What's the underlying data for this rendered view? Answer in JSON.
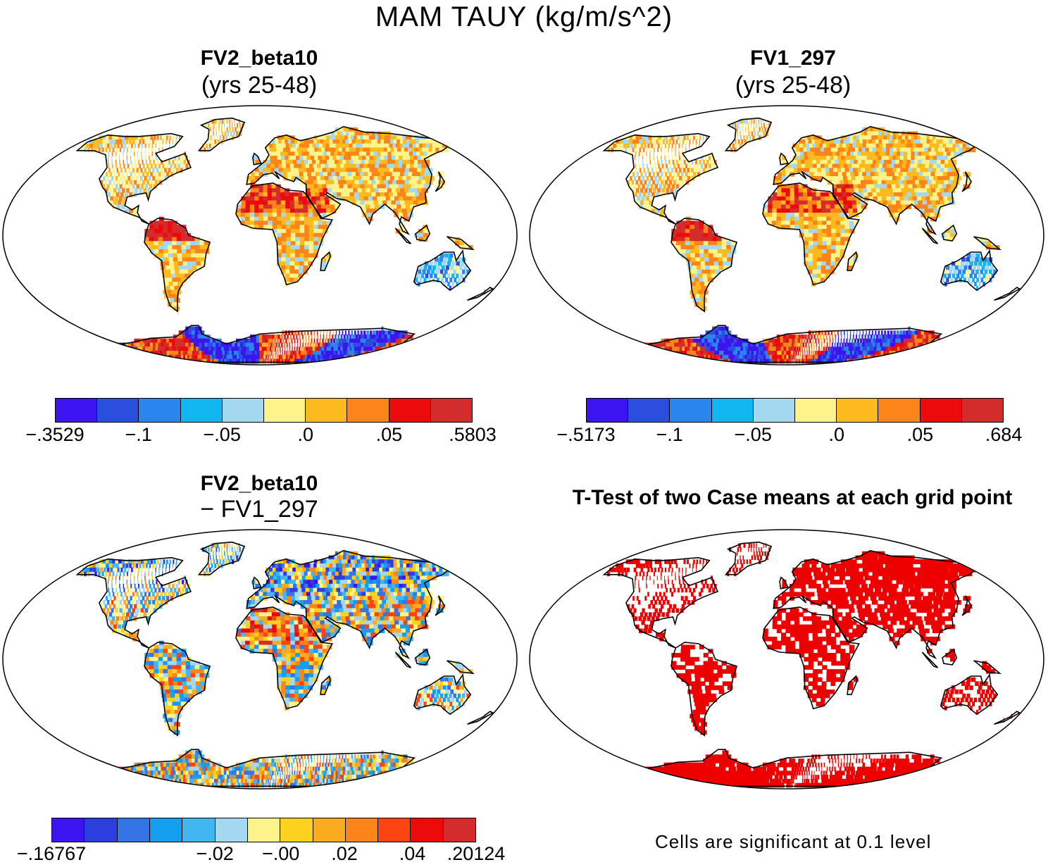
{
  "title": "MAM TAUY (kg/m/s^2)",
  "panels": [
    {
      "id": "p1",
      "title": "FV2_beta10",
      "subtitle": "(yrs 25-48)"
    },
    {
      "id": "p2",
      "title": "FV1_297",
      "subtitle": "(yrs 25-48)"
    },
    {
      "id": "p3",
      "title": "FV2_beta10",
      "subtitle": "− FV1_297"
    },
    {
      "id": "p4",
      "title": "T-Test of two Case means at each grid point",
      "subtitle": ""
    }
  ],
  "colorbars": [
    {
      "id": "cb1",
      "colors": [
        "#3c14f0",
        "#2c4ede",
        "#2a86ee",
        "#12b6f0",
        "#a4d8f0",
        "#fcf48a",
        "#fcba1e",
        "#fc8418",
        "#ec0a0a",
        "#d42c2c"
      ],
      "ticks": [
        "−.3529",
        "−.1",
        "−.05",
        ".0",
        ".05",
        ".5803"
      ]
    },
    {
      "id": "cb2",
      "colors": [
        "#3c14f0",
        "#2c4ede",
        "#2a86ee",
        "#12b6f0",
        "#a4d8f0",
        "#fcf48a",
        "#fcba1e",
        "#fc8418",
        "#ec0a0a",
        "#d42c2c"
      ],
      "ticks": [
        "−.5173",
        "−.1",
        "−.05",
        ".0",
        ".05",
        ".684"
      ]
    },
    {
      "id": "cb3",
      "colors": [
        "#3c14f0",
        "#2c3ede",
        "#3474e4",
        "#149ef0",
        "#42b6f0",
        "#a4d8f0",
        "#fcf48a",
        "#fcd21e",
        "#fcaa1e",
        "#fc8418",
        "#fc4412",
        "#ec0a0a",
        "#d42c2c"
      ],
      "ticks": [
        "−.16767",
        "−.02",
        "−.00",
        ".02",
        ".04",
        ".20124"
      ]
    }
  ],
  "significance_note": "Cells are significant at 0.1 level",
  "palette": {
    "sig": "#ee0000",
    "land_outline": "#000000"
  }
}
